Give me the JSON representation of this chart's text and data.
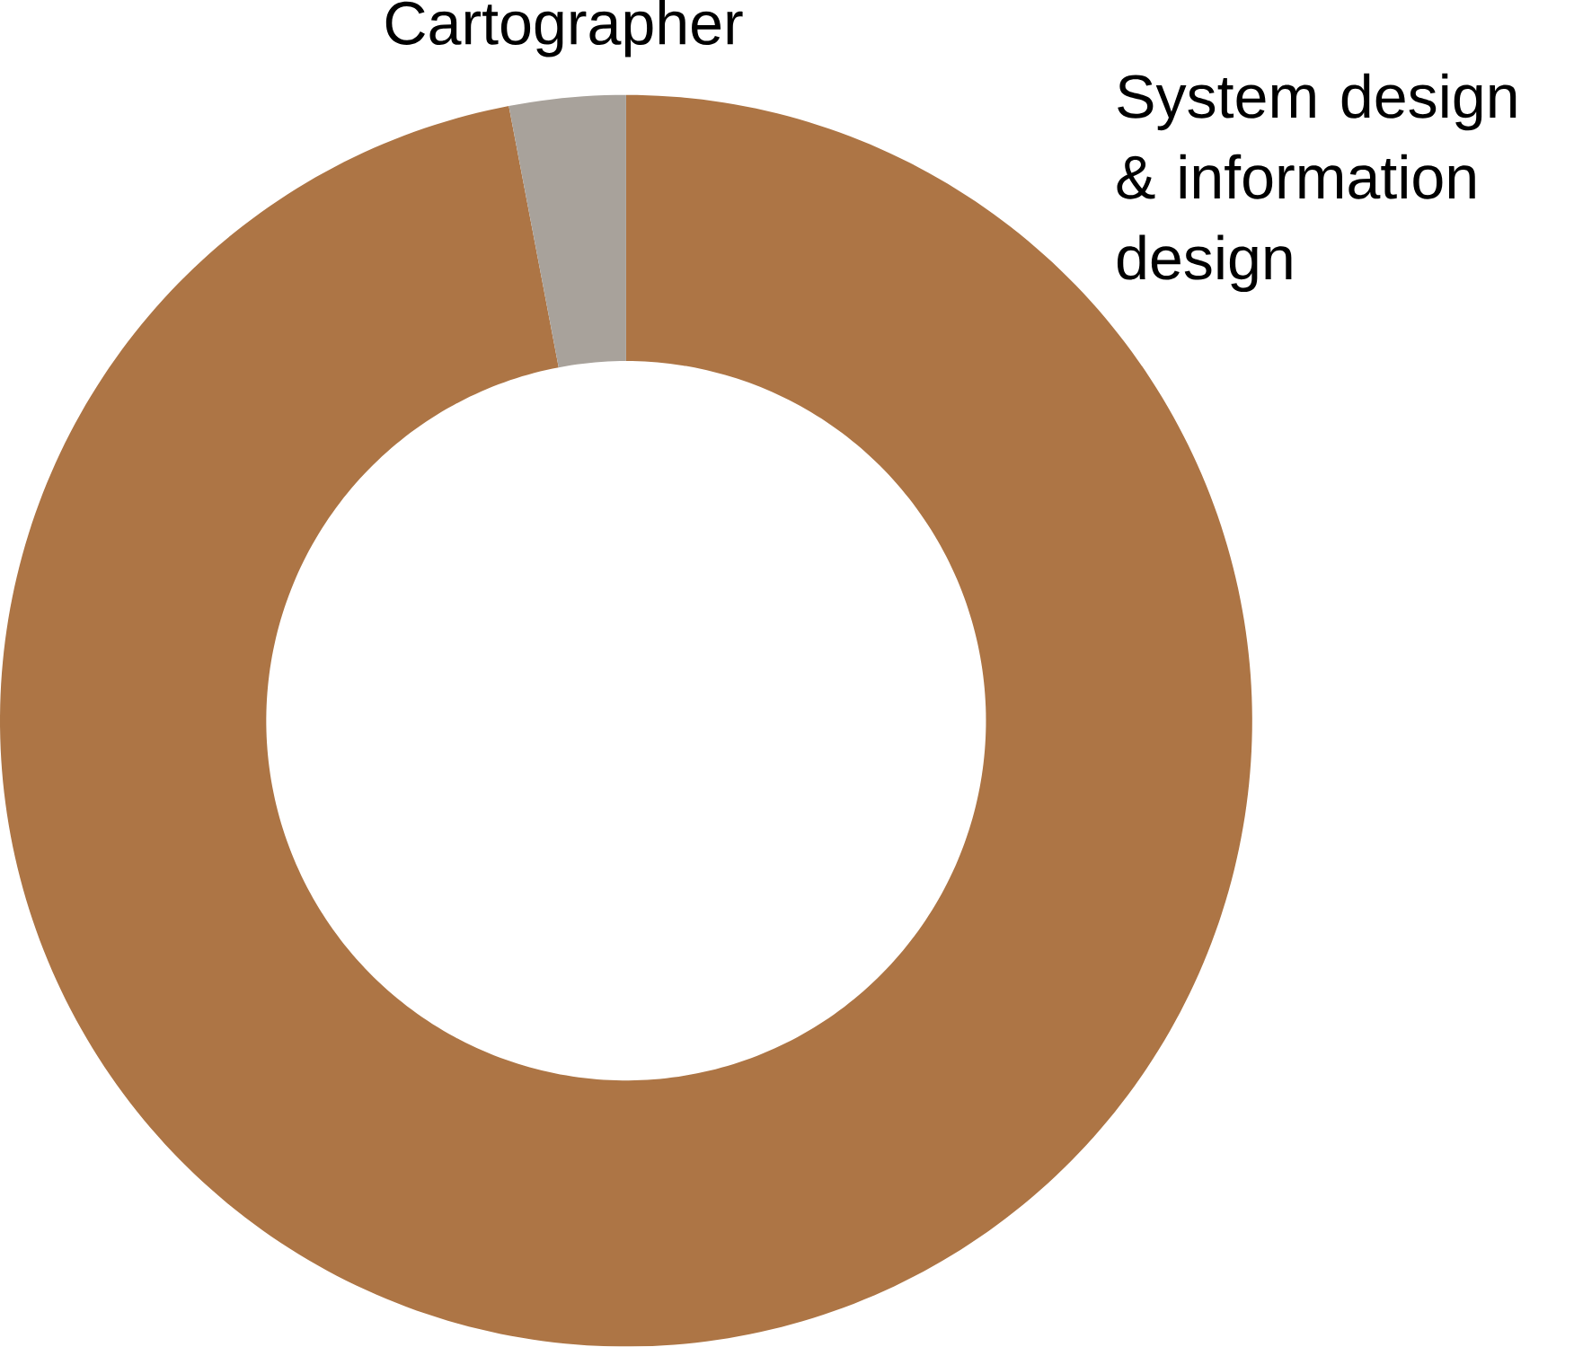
{
  "chart_data": {
    "type": "donut",
    "categories": [
      "System design & information design",
      "Cartographer"
    ],
    "values": [
      97,
      3
    ],
    "colors": [
      "#ad7545",
      "#a8a29b"
    ]
  }
}
